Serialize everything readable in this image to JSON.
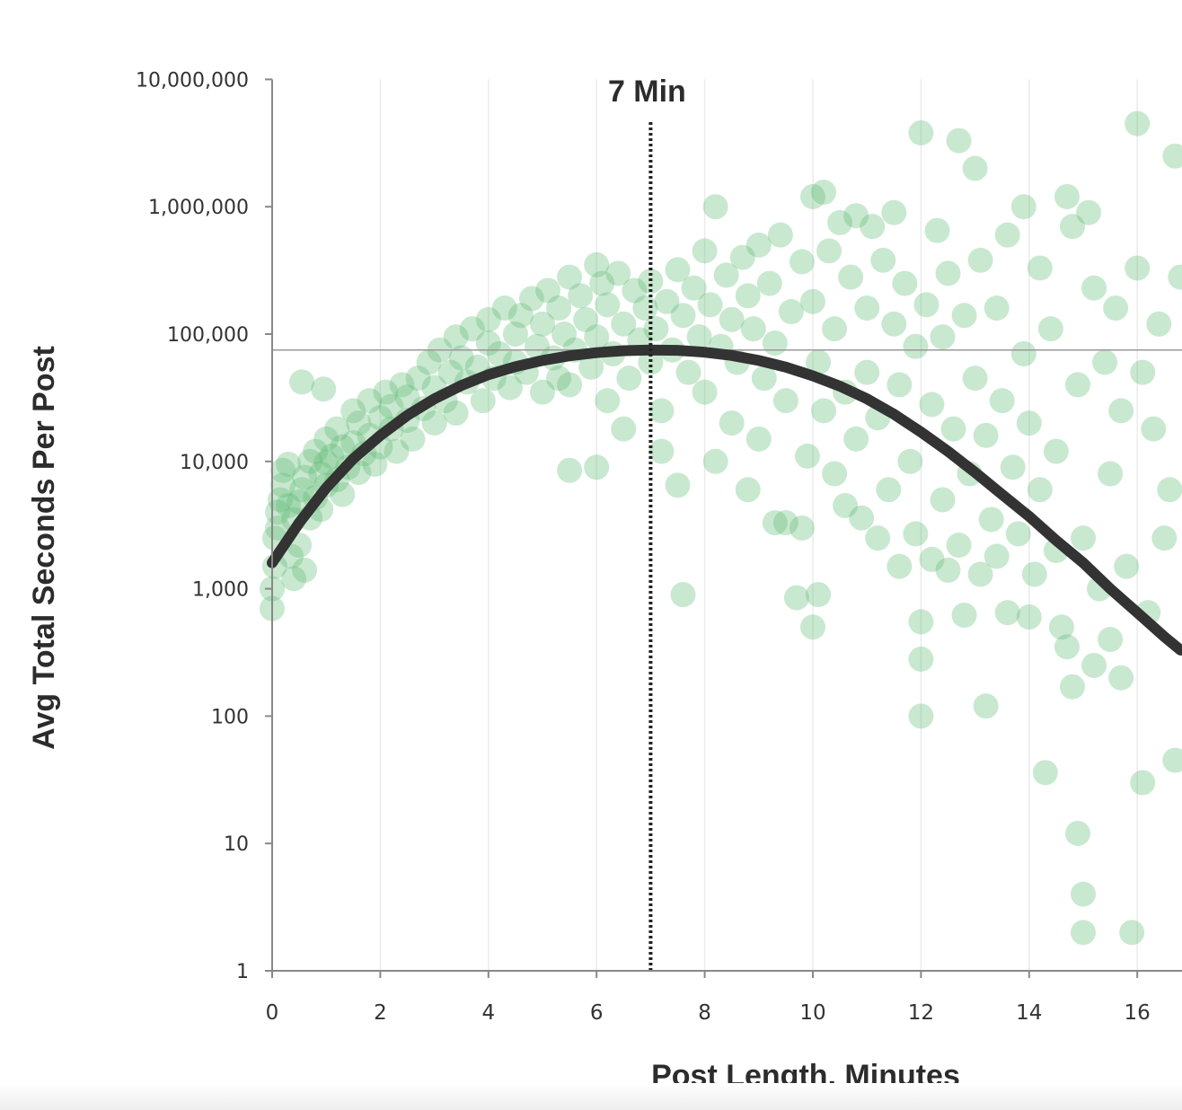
{
  "chart_data": {
    "type": "scatter",
    "xlabel": "Post Length, Minutes",
    "ylabel": "Avg Total Seconds Per Post",
    "x_ticks": [
      0,
      2,
      4,
      6,
      8,
      10,
      12,
      14,
      16
    ],
    "y_ticks": [
      {
        "value": 1,
        "label": "1"
      },
      {
        "value": 10,
        "label": "10"
      },
      {
        "value": 100,
        "label": "100"
      },
      {
        "value": 1000,
        "label": "1,000"
      },
      {
        "value": 10000,
        "label": "10,000"
      },
      {
        "value": 100000,
        "label": "100,000"
      },
      {
        "value": 1000000,
        "label": "1,000,000"
      },
      {
        "value": 10000000,
        "label": "10,000,000"
      }
    ],
    "y_scale": "log",
    "xlim": [
      0,
      16.8
    ],
    "ylim": [
      1,
      10000000
    ],
    "grid": "vertical",
    "colors": {
      "points": "#5cb870",
      "fit_line": "#333333",
      "axis": "#888888",
      "grid": "#ebebeb",
      "reference": "#999999"
    },
    "annotation": {
      "label": "7 Min",
      "x": 7
    },
    "reference_line_y": 75000,
    "fit_curve": {
      "x": [
        0,
        0.5,
        1,
        1.5,
        2,
        2.5,
        3,
        3.5,
        4,
        4.5,
        5,
        5.5,
        6,
        6.5,
        7,
        7.5,
        8,
        8.5,
        9,
        9.5,
        10,
        10.5,
        11,
        11.5,
        12,
        12.5,
        13,
        13.5,
        14,
        14.5,
        15,
        15.5,
        16,
        16.5,
        16.8
      ],
      "y": [
        1600,
        3300,
        6200,
        10500,
        16000,
        23000,
        31000,
        39500,
        48000,
        55500,
        62000,
        67500,
        71500,
        74000,
        75000,
        74500,
        72000,
        68000,
        62000,
        55000,
        47000,
        39000,
        31000,
        23500,
        17000,
        12000,
        8200,
        5500,
        3700,
        2400,
        1600,
        1000,
        650,
        420,
        330
      ]
    },
    "points": [
      [
        0.0,
        700
      ],
      [
        0.0,
        1000
      ],
      [
        0.05,
        1500
      ],
      [
        0.05,
        2500
      ],
      [
        0.1,
        3000
      ],
      [
        0.1,
        4000
      ],
      [
        0.15,
        5000
      ],
      [
        0.2,
        6500
      ],
      [
        0.2,
        8500
      ],
      [
        0.3,
        9500
      ],
      [
        0.3,
        4500
      ],
      [
        0.35,
        1800
      ],
      [
        0.4,
        3500
      ],
      [
        0.4,
        1200
      ],
      [
        0.5,
        2200
      ],
      [
        0.5,
        4800
      ],
      [
        0.55,
        6000
      ],
      [
        0.6,
        1400
      ],
      [
        0.6,
        7500
      ],
      [
        0.7,
        10000
      ],
      [
        0.7,
        3600
      ],
      [
        0.8,
        5200
      ],
      [
        0.8,
        12000
      ],
      [
        0.9,
        8000
      ],
      [
        0.9,
        4200
      ],
      [
        1.0,
        15000
      ],
      [
        1.0,
        6500
      ],
      [
        1.0,
        9800
      ],
      [
        1.1,
        11000
      ],
      [
        1.2,
        7200
      ],
      [
        1.2,
        18000
      ],
      [
        1.3,
        5500
      ],
      [
        1.3,
        13000
      ],
      [
        1.4,
        9000
      ],
      [
        1.5,
        25000
      ],
      [
        1.5,
        14000
      ],
      [
        1.6,
        8200
      ],
      [
        1.6,
        20000
      ],
      [
        1.7,
        11500
      ],
      [
        1.8,
        30000
      ],
      [
        1.8,
        16000
      ],
      [
        1.9,
        9500
      ],
      [
        2.0,
        22000
      ],
      [
        2.0,
        13000
      ],
      [
        2.1,
        35000
      ],
      [
        2.2,
        18000
      ],
      [
        2.2,
        27000
      ],
      [
        2.3,
        12000
      ],
      [
        2.4,
        40000
      ],
      [
        2.5,
        21000
      ],
      [
        0.55,
        42000
      ],
      [
        0.95,
        37000
      ],
      [
        2.5,
        32000
      ],
      [
        2.6,
        15000
      ],
      [
        2.7,
        45000
      ],
      [
        2.8,
        26000
      ],
      [
        2.9,
        60000
      ],
      [
        3.0,
        38000
      ],
      [
        3.0,
        20000
      ],
      [
        3.1,
        75000
      ],
      [
        3.2,
        30000
      ],
      [
        3.3,
        50000
      ],
      [
        3.4,
        95000
      ],
      [
        3.4,
        24000
      ],
      [
        3.5,
        65000
      ],
      [
        3.6,
        42000
      ],
      [
        3.7,
        110000
      ],
      [
        3.8,
        55000
      ],
      [
        3.9,
        30000
      ],
      [
        4.0,
        85000
      ],
      [
        4.0,
        130000
      ],
      [
        4.1,
        45000
      ],
      [
        4.2,
        70000
      ],
      [
        4.3,
        160000
      ],
      [
        4.4,
        38000
      ],
      [
        4.5,
        100000
      ],
      [
        4.5,
        60000
      ],
      [
        4.6,
        140000
      ],
      [
        4.7,
        50000
      ],
      [
        4.8,
        190000
      ],
      [
        4.9,
        80000
      ],
      [
        5.0,
        35000
      ],
      [
        5.0,
        120000
      ],
      [
        5.1,
        220000
      ],
      [
        5.2,
        65000
      ],
      [
        5.3,
        45000
      ],
      [
        5.3,
        160000
      ],
      [
        5.4,
        100000
      ],
      [
        5.5,
        280000
      ],
      [
        5.5,
        40000
      ],
      [
        5.5,
        8500
      ],
      [
        5.6,
        75000
      ],
      [
        5.7,
        200000
      ],
      [
        5.8,
        130000
      ],
      [
        5.9,
        55000
      ],
      [
        6.0,
        350000
      ],
      [
        6.0,
        9000
      ],
      [
        6.0,
        95000
      ],
      [
        6.1,
        250000
      ],
      [
        6.2,
        170000
      ],
      [
        6.2,
        30000
      ],
      [
        6.3,
        70000
      ],
      [
        6.4,
        300000
      ],
      [
        6.5,
        120000
      ],
      [
        6.5,
        18000
      ],
      [
        6.6,
        45000
      ],
      [
        6.7,
        220000
      ],
      [
        6.8,
        90000
      ],
      [
        6.9,
        160000
      ],
      [
        7.0,
        60000
      ],
      [
        7.0,
        260000
      ],
      [
        7.1,
        110000
      ],
      [
        7.2,
        25000
      ],
      [
        7.2,
        12000
      ],
      [
        7.3,
        180000
      ],
      [
        7.4,
        75000
      ],
      [
        7.5,
        6500
      ],
      [
        7.5,
        320000
      ],
      [
        7.6,
        140000
      ],
      [
        7.6,
        900
      ],
      [
        7.7,
        50000
      ],
      [
        7.8,
        230000
      ],
      [
        7.9,
        95000
      ],
      [
        8.0,
        450000
      ],
      [
        8.0,
        35000
      ],
      [
        8.1,
        170000
      ],
      [
        8.2,
        1000000
      ],
      [
        8.2,
        10000
      ],
      [
        8.3,
        80000
      ],
      [
        8.4,
        290000
      ],
      [
        8.5,
        130000
      ],
      [
        8.5,
        20000
      ],
      [
        8.6,
        60000
      ],
      [
        8.7,
        400000
      ],
      [
        8.8,
        200000
      ],
      [
        8.8,
        6000
      ],
      [
        8.9,
        110000
      ],
      [
        9.0,
        15000
      ],
      [
        9.0,
        500000
      ],
      [
        9.1,
        45000
      ],
      [
        9.2,
        250000
      ],
      [
        9.3,
        3300
      ],
      [
        9.3,
        85000
      ],
      [
        9.4,
        600000
      ],
      [
        9.5,
        30000
      ],
      [
        9.5,
        3300
      ],
      [
        9.6,
        150000
      ],
      [
        9.7,
        850
      ],
      [
        9.8,
        370000
      ],
      [
        9.8,
        3000
      ],
      [
        9.9,
        11000
      ],
      [
        10.0,
        1200000
      ],
      [
        10.0,
        500
      ],
      [
        10.0,
        180000
      ],
      [
        10.1,
        900
      ],
      [
        10.1,
        60000
      ],
      [
        10.2,
        1300000
      ],
      [
        10.2,
        25000
      ],
      [
        10.3,
        450000
      ],
      [
        10.4,
        8000
      ],
      [
        10.4,
        110000
      ],
      [
        10.5,
        750000
      ],
      [
        10.6,
        4500
      ],
      [
        10.6,
        35000
      ],
      [
        10.7,
        280000
      ],
      [
        10.8,
        850000
      ],
      [
        10.8,
        15000
      ],
      [
        10.9,
        3600
      ],
      [
        11.0,
        160000
      ],
      [
        11.0,
        50000
      ],
      [
        11.1,
        700000
      ],
      [
        11.2,
        2500
      ],
      [
        11.2,
        22000
      ],
      [
        11.3,
        380000
      ],
      [
        11.4,
        6000
      ],
      [
        11.5,
        120000
      ],
      [
        11.5,
        900000
      ],
      [
        11.6,
        1500
      ],
      [
        11.6,
        40000
      ],
      [
        11.7,
        250000
      ],
      [
        11.8,
        10000
      ],
      [
        11.9,
        2700
      ],
      [
        11.9,
        80000
      ],
      [
        12.0,
        550
      ],
      [
        12.0,
        3800000
      ],
      [
        12.0,
        100
      ],
      [
        12.0,
        280
      ],
      [
        12.1,
        170000
      ],
      [
        12.2,
        1700
      ],
      [
        12.2,
        28000
      ],
      [
        12.3,
        650000
      ],
      [
        12.4,
        5000
      ],
      [
        12.4,
        95000
      ],
      [
        12.5,
        1400
      ],
      [
        12.5,
        300000
      ],
      [
        12.6,
        18000
      ],
      [
        12.7,
        3300000
      ],
      [
        12.7,
        2200
      ],
      [
        12.8,
        140000
      ],
      [
        12.8,
        620
      ],
      [
        12.9,
        8000
      ],
      [
        13.0,
        2000000
      ],
      [
        13.0,
        45000
      ],
      [
        13.1,
        1300
      ],
      [
        13.1,
        380000
      ],
      [
        13.2,
        120
      ],
      [
        13.2,
        16000
      ],
      [
        13.3,
        3500
      ],
      [
        13.4,
        160000
      ],
      [
        13.4,
        1800
      ],
      [
        13.5,
        30000
      ],
      [
        13.6,
        650
      ],
      [
        13.6,
        600000
      ],
      [
        13.7,
        9000
      ],
      [
        13.8,
        2700
      ],
      [
        13.9,
        70000
      ],
      [
        13.9,
        1000000
      ],
      [
        14.0,
        600
      ],
      [
        14.0,
        20000
      ],
      [
        14.1,
        1300
      ],
      [
        14.2,
        330000
      ],
      [
        14.2,
        6000
      ],
      [
        14.3,
        36
      ],
      [
        14.4,
        110000
      ],
      [
        14.5,
        2000
      ],
      [
        14.5,
        12000
      ],
      [
        14.6,
        500
      ],
      [
        14.7,
        1200000
      ],
      [
        14.7,
        350
      ],
      [
        14.8,
        170
      ],
      [
        14.8,
        700000
      ],
      [
        14.9,
        40000
      ],
      [
        14.9,
        12
      ],
      [
        15.0,
        4
      ],
      [
        15.0,
        2
      ],
      [
        15.0,
        2500
      ],
      [
        15.1,
        900000
      ],
      [
        15.2,
        250
      ],
      [
        15.2,
        230000
      ],
      [
        15.3,
        1000
      ],
      [
        15.4,
        60000
      ],
      [
        15.5,
        8000
      ],
      [
        15.5,
        400
      ],
      [
        15.6,
        160000
      ],
      [
        15.7,
        200
      ],
      [
        15.7,
        25000
      ],
      [
        15.8,
        1500
      ],
      [
        15.9,
        2
      ],
      [
        16.0,
        4500000
      ],
      [
        16.0,
        330000
      ],
      [
        16.1,
        30
      ],
      [
        16.1,
        50000
      ],
      [
        16.2,
        650
      ],
      [
        16.3,
        18000
      ],
      [
        16.4,
        120000
      ],
      [
        16.5,
        2500
      ],
      [
        16.6,
        6000
      ],
      [
        16.7,
        2500000
      ],
      [
        16.7,
        45
      ],
      [
        16.8,
        280000
      ]
    ]
  }
}
